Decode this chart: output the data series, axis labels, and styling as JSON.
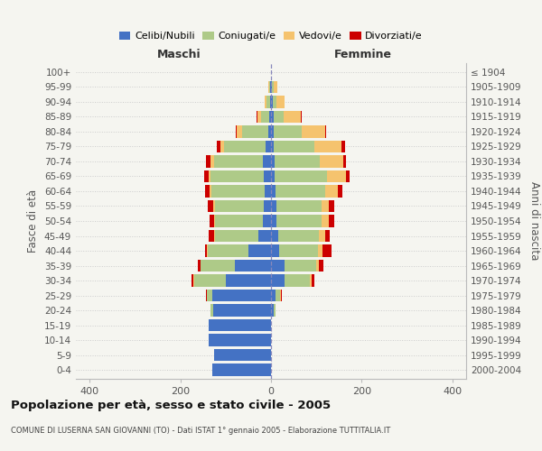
{
  "age_groups": [
    "0-4",
    "5-9",
    "10-14",
    "15-19",
    "20-24",
    "25-29",
    "30-34",
    "35-39",
    "40-44",
    "45-49",
    "50-54",
    "55-59",
    "60-64",
    "65-69",
    "70-74",
    "75-79",
    "80-84",
    "85-89",
    "90-94",
    "95-99",
    "100+"
  ],
  "birth_years": [
    "2000-2004",
    "1995-1999",
    "1990-1994",
    "1985-1989",
    "1980-1984",
    "1975-1979",
    "1970-1974",
    "1965-1969",
    "1960-1964",
    "1955-1959",
    "1950-1954",
    "1945-1949",
    "1940-1944",
    "1935-1939",
    "1930-1934",
    "1925-1929",
    "1920-1924",
    "1915-1919",
    "1910-1914",
    "1905-1909",
    "≤ 1904"
  ],
  "maschi": {
    "celibi": [
      130,
      125,
      138,
      138,
      128,
      130,
      100,
      80,
      50,
      28,
      18,
      16,
      14,
      16,
      18,
      12,
      6,
      4,
      2,
      2,
      0
    ],
    "coniugati": [
      0,
      0,
      0,
      0,
      5,
      12,
      70,
      75,
      90,
      95,
      105,
      108,
      118,
      118,
      108,
      92,
      58,
      18,
      8,
      2,
      0
    ],
    "vedovi": [
      0,
      0,
      0,
      0,
      0,
      0,
      1,
      1,
      1,
      2,
      2,
      3,
      4,
      4,
      8,
      8,
      12,
      8,
      4,
      2,
      0
    ],
    "divorziati": [
      0,
      0,
      0,
      0,
      0,
      2,
      5,
      5,
      5,
      12,
      10,
      12,
      10,
      10,
      10,
      8,
      2,
      2,
      0,
      0,
      0
    ]
  },
  "femmine": {
    "nubili": [
      0,
      0,
      0,
      0,
      5,
      10,
      30,
      30,
      18,
      15,
      12,
      12,
      10,
      8,
      8,
      5,
      5,
      5,
      3,
      2,
      0
    ],
    "coniugate": [
      0,
      0,
      0,
      0,
      5,
      10,
      55,
      70,
      85,
      90,
      100,
      100,
      110,
      115,
      100,
      90,
      62,
      22,
      8,
      4,
      0
    ],
    "vedove": [
      0,
      0,
      0,
      0,
      0,
      2,
      5,
      5,
      10,
      15,
      15,
      15,
      28,
      42,
      52,
      60,
      52,
      38,
      18,
      8,
      0
    ],
    "divorziate": [
      0,
      0,
      0,
      0,
      0,
      2,
      5,
      10,
      20,
      10,
      12,
      12,
      10,
      8,
      5,
      8,
      2,
      2,
      0,
      0,
      0
    ]
  },
  "colors": {
    "celibi": "#4472C4",
    "coniugati": "#AECA88",
    "vedovi": "#F5C36E",
    "divorziati": "#CC0000"
  },
  "xlim": 430,
  "xticks": [
    -400,
    -200,
    0,
    200,
    400
  ],
  "title": "Popolazione per età, sesso e stato civile - 2005",
  "subtitle": "COMUNE DI LUSERNA SAN GIOVANNI (TO) - Dati ISTAT 1° gennaio 2005 - Elaborazione TUTTITALIA.IT",
  "ylabel_left": "Fasce di età",
  "ylabel_right": "Anni di nascita",
  "header_left": "Maschi",
  "header_right": "Femmine",
  "bg_color": "#f5f5f0"
}
